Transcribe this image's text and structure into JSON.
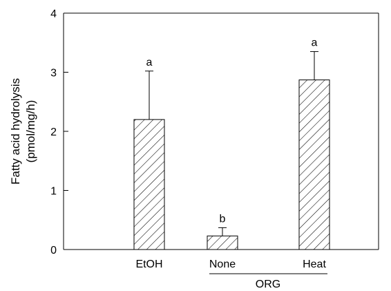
{
  "chart_data": {
    "type": "bar",
    "categories": [
      "EtOH",
      "None",
      "Heat"
    ],
    "values": [
      2.2,
      0.23,
      2.87
    ],
    "errors": [
      0.82,
      0.14,
      0.48
    ],
    "significance": [
      "a",
      "b",
      "a"
    ],
    "ylabel_line1": "Fatty acid hydrolysis",
    "ylabel_line2": "(pmol/mg/h)",
    "ylim": [
      0,
      4
    ],
    "yticks": [
      0,
      1,
      2,
      3,
      4
    ],
    "grid": false,
    "legend": "none",
    "group": {
      "label": "ORG",
      "categories": [
        "None",
        "Heat"
      ]
    },
    "bar_fill": "hatched",
    "colors": {
      "axis": "#000000",
      "bar_stroke": "#000000",
      "hatch": "#000000",
      "background": "#ffffff"
    }
  }
}
